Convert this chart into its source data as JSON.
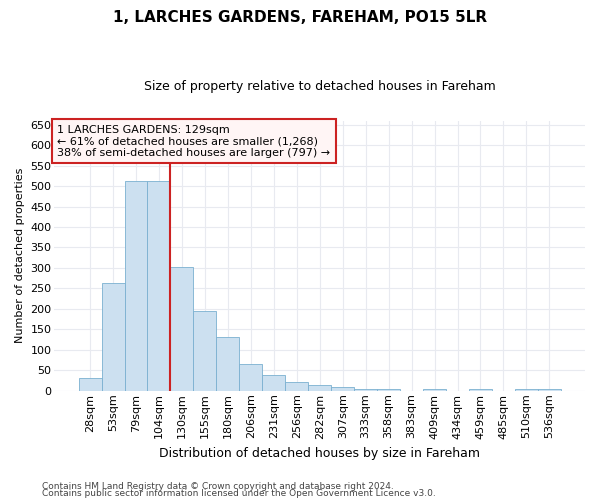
{
  "title1": "1, LARCHES GARDENS, FAREHAM, PO15 5LR",
  "title2": "Size of property relative to detached houses in Fareham",
  "xlabel": "Distribution of detached houses by size in Fareham",
  "ylabel": "Number of detached properties",
  "categories": [
    "28sqm",
    "53sqm",
    "79sqm",
    "104sqm",
    "130sqm",
    "155sqm",
    "180sqm",
    "206sqm",
    "231sqm",
    "256sqm",
    "282sqm",
    "307sqm",
    "333sqm",
    "358sqm",
    "383sqm",
    "409sqm",
    "434sqm",
    "459sqm",
    "485sqm",
    "510sqm",
    "536sqm"
  ],
  "values": [
    30,
    262,
    512,
    512,
    302,
    196,
    131,
    65,
    38,
    22,
    15,
    10,
    5,
    5,
    0,
    5,
    0,
    5,
    0,
    5,
    5
  ],
  "bar_color": "#cce0f0",
  "bar_edge_color": "#7ab0d0",
  "red_line_index": 4,
  "annotation_lines": [
    "1 LARCHES GARDENS: 129sqm",
    "← 61% of detached houses are smaller (1,268)",
    "38% of semi-detached houses are larger (797) →"
  ],
  "ylim": [
    0,
    660
  ],
  "yticks": [
    0,
    50,
    100,
    150,
    200,
    250,
    300,
    350,
    400,
    450,
    500,
    550,
    600,
    650
  ],
  "footer1": "Contains HM Land Registry data © Crown copyright and database right 2024.",
  "footer2": "Contains public sector information licensed under the Open Government Licence v3.0.",
  "background_color": "#ffffff",
  "plot_bg_color": "#ffffff",
  "grid_color": "#e8eaf0",
  "annotation_box_facecolor": "#fff5f5",
  "annotation_box_edgecolor": "#cc2222",
  "title1_fontsize": 11,
  "title2_fontsize": 9,
  "xlabel_fontsize": 9,
  "ylabel_fontsize": 8,
  "tick_fontsize": 8,
  "annotation_fontsize": 8,
  "footer_fontsize": 6.5
}
